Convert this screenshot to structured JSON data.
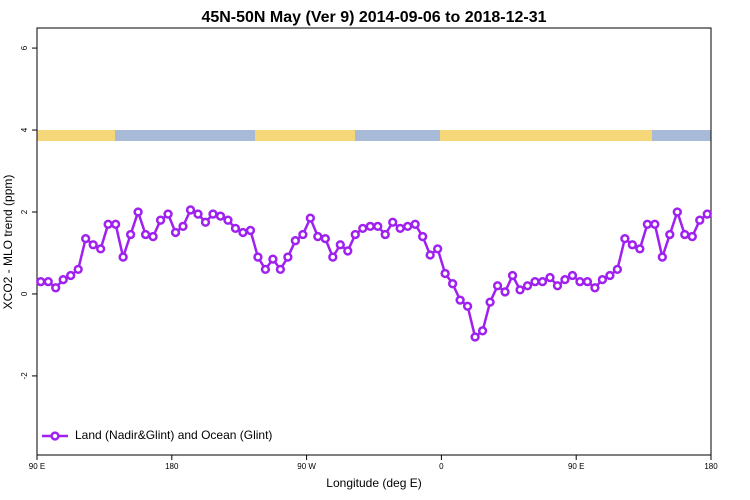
{
  "chart_data": {
    "type": "line",
    "title": "45N-50N May (Ver 9)   2014-09-06 to 2018-12-31",
    "x_label": "Longitude (deg E)",
    "y_label": "XCO2 - MLO trend (ppm)",
    "x": [
      92.5,
      97.5,
      102.5,
      107.5,
      112.5,
      117.5,
      122.5,
      127.5,
      132.5,
      137.5,
      142.5,
      147.5,
      152.5,
      157.5,
      162.5,
      167.5,
      172.5,
      177.5,
      182.5,
      187.5,
      192.5,
      197.5,
      202.5,
      207.5,
      212.5,
      217.5,
      222.5,
      227.5,
      232.5,
      237.5,
      242.5,
      247.5,
      252.5,
      257.5,
      262.5,
      267.5,
      272.5,
      277.5,
      282.5,
      287.5,
      292.5,
      297.5,
      302.5,
      307.5,
      312.5,
      317.5,
      322.5,
      327.5,
      332.5,
      337.5,
      342.5,
      347.5,
      352.5,
      357.5,
      362.5,
      367.5,
      372.5,
      377.5,
      382.5,
      387.5,
      392.5,
      397.5,
      402.5,
      407.5,
      412.5,
      417.5,
      422.5,
      427.5,
      432.5,
      437.5,
      442.5,
      447.5,
      452.5,
      457.5,
      462.5,
      467.5,
      472.5,
      477.5,
      482.5,
      487.5,
      492.5,
      497.5,
      502.5,
      507.5,
      512.5,
      517.5,
      522.5,
      527.5,
      532.5,
      537.5
    ],
    "series": [
      {
        "name": "Land (Nadir&Glint) and Ocean (Glint)",
        "color": "#a020f0",
        "values": [
          0.3,
          0.3,
          0.15,
          0.35,
          0.45,
          0.6,
          1.35,
          1.2,
          1.1,
          1.7,
          1.7,
          0.9,
          1.45,
          2.0,
          1.45,
          1.4,
          1.8,
          1.95,
          1.5,
          1.65,
          2.05,
          1.95,
          1.75,
          1.95,
          1.9,
          1.8,
          1.6,
          1.5,
          1.55,
          0.9,
          0.6,
          0.85,
          0.6,
          0.9,
          1.3,
          1.45,
          1.85,
          1.4,
          1.35,
          0.9,
          1.2,
          1.05,
          1.45,
          1.6,
          1.65,
          1.65,
          1.45,
          1.75,
          1.6,
          1.65,
          1.7,
          1.4,
          0.95,
          1.1,
          0.5,
          0.25,
          -0.15,
          -0.3,
          -1.05,
          -0.9,
          -0.2,
          0.2,
          0.05,
          0.45,
          0.1,
          0.2,
          0.3,
          0.3,
          0.4,
          0.2,
          0.35,
          0.45,
          0.3,
          0.3,
          0.15,
          0.35,
          0.45,
          0.6,
          1.35,
          1.2,
          1.1,
          1.7,
          1.7,
          0.9,
          1.45,
          2.0,
          1.45,
          1.4,
          1.8,
          1.95
        ]
      }
    ],
    "xlim": [
      90,
      540
    ],
    "xticks": [
      {
        "value": 90,
        "label": "90 E"
      },
      180,
      {
        "value": 270,
        "label": "90 W"
      },
      {
        "value": 360,
        "label": "0"
      },
      {
        "value": 450,
        "label": "90 E"
      },
      {
        "value": 540,
        "label": "180"
      }
    ],
    "ylim": [
      -3.93,
      6.49
    ],
    "yticks": [
      -2,
      0,
      2,
      4,
      6
    ],
    "legend": "bottom-left"
  }
}
